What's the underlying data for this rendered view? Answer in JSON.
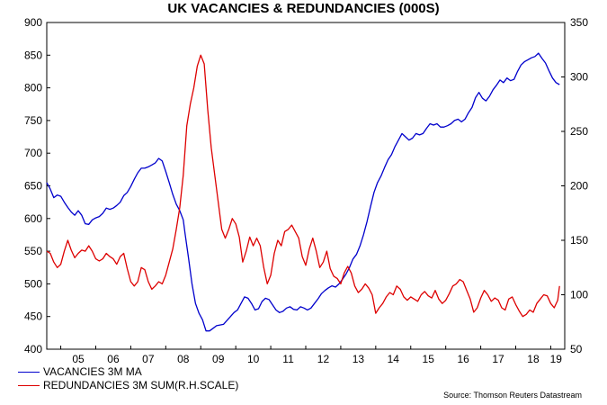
{
  "title": "UK VACANCIES & REDUNDANCIES (000S)",
  "source": "Source: Thomson Reuters Datastream",
  "colors": {
    "vacancies": "#0000cc",
    "redundancies": "#dd0000",
    "axis": "#000000"
  },
  "chart_data": {
    "type": "line",
    "title": "UK VACANCIES & REDUNDANCIES (000S)",
    "x_tick_labels": [
      "05",
      "06",
      "07",
      "08",
      "09",
      "10",
      "11",
      "12",
      "13",
      "14",
      "15",
      "16",
      "17",
      "18",
      "19"
    ],
    "x_range": [
      2004.6,
      2019.4
    ],
    "y_left": {
      "range": [
        400,
        900
      ],
      "ticks": [
        400,
        450,
        500,
        550,
        600,
        650,
        700,
        750,
        800,
        850,
        900
      ]
    },
    "y_right": {
      "range": [
        50,
        350
      ],
      "ticks": [
        50,
        100,
        150,
        200,
        250,
        300,
        350
      ]
    },
    "grid": false,
    "legend_position": "bottom-left",
    "series": [
      {
        "name": "VACANCIES 3M MA",
        "axis": "left",
        "color": "#0000cc",
        "points": [
          [
            2004.6,
            655
          ],
          [
            2004.7,
            645
          ],
          [
            2004.8,
            632
          ],
          [
            2004.9,
            636
          ],
          [
            2005.0,
            634
          ],
          [
            2005.1,
            625
          ],
          [
            2005.2,
            617
          ],
          [
            2005.3,
            610
          ],
          [
            2005.4,
            605
          ],
          [
            2005.5,
            612
          ],
          [
            2005.6,
            605
          ],
          [
            2005.7,
            592
          ],
          [
            2005.8,
            591
          ],
          [
            2005.9,
            598
          ],
          [
            2006.0,
            601
          ],
          [
            2006.1,
            603
          ],
          [
            2006.2,
            608
          ],
          [
            2006.3,
            616
          ],
          [
            2006.4,
            614
          ],
          [
            2006.5,
            616
          ],
          [
            2006.6,
            620
          ],
          [
            2006.7,
            625
          ],
          [
            2006.8,
            635
          ],
          [
            2006.9,
            640
          ],
          [
            2007.0,
            649
          ],
          [
            2007.1,
            660
          ],
          [
            2007.2,
            670
          ],
          [
            2007.3,
            677
          ],
          [
            2007.4,
            677
          ],
          [
            2007.5,
            679
          ],
          [
            2007.6,
            682
          ],
          [
            2007.7,
            685
          ],
          [
            2007.8,
            692
          ],
          [
            2007.9,
            688
          ],
          [
            2008.0,
            672
          ],
          [
            2008.1,
            655
          ],
          [
            2008.2,
            637
          ],
          [
            2008.3,
            622
          ],
          [
            2008.4,
            612
          ],
          [
            2008.5,
            598
          ],
          [
            2008.55,
            578
          ],
          [
            2008.65,
            540
          ],
          [
            2008.75,
            500
          ],
          [
            2008.85,
            470
          ],
          [
            2008.95,
            455
          ],
          [
            2009.05,
            445
          ],
          [
            2009.15,
            428
          ],
          [
            2009.25,
            428
          ],
          [
            2009.35,
            432
          ],
          [
            2009.45,
            436
          ],
          [
            2009.55,
            437
          ],
          [
            2009.65,
            438
          ],
          [
            2009.75,
            444
          ],
          [
            2009.85,
            450
          ],
          [
            2009.95,
            456
          ],
          [
            2010.05,
            460
          ],
          [
            2010.15,
            470
          ],
          [
            2010.25,
            480
          ],
          [
            2010.35,
            478
          ],
          [
            2010.45,
            470
          ],
          [
            2010.55,
            460
          ],
          [
            2010.65,
            462
          ],
          [
            2010.75,
            473
          ],
          [
            2010.85,
            478
          ],
          [
            2010.95,
            476
          ],
          [
            2011.05,
            468
          ],
          [
            2011.15,
            460
          ],
          [
            2011.25,
            456
          ],
          [
            2011.35,
            458
          ],
          [
            2011.45,
            463
          ],
          [
            2011.55,
            465
          ],
          [
            2011.65,
            461
          ],
          [
            2011.75,
            460
          ],
          [
            2011.85,
            465
          ],
          [
            2011.95,
            463
          ],
          [
            2012.05,
            460
          ],
          [
            2012.15,
            463
          ],
          [
            2012.25,
            470
          ],
          [
            2012.35,
            477
          ],
          [
            2012.45,
            485
          ],
          [
            2012.55,
            490
          ],
          [
            2012.65,
            494
          ],
          [
            2012.75,
            497
          ],
          [
            2012.85,
            495
          ],
          [
            2012.95,
            500
          ],
          [
            2013.05,
            507
          ],
          [
            2013.15,
            515
          ],
          [
            2013.25,
            525
          ],
          [
            2013.35,
            538
          ],
          [
            2013.45,
            545
          ],
          [
            2013.55,
            558
          ],
          [
            2013.65,
            575
          ],
          [
            2013.75,
            595
          ],
          [
            2013.85,
            618
          ],
          [
            2013.95,
            640
          ],
          [
            2014.05,
            655
          ],
          [
            2014.15,
            665
          ],
          [
            2014.25,
            678
          ],
          [
            2014.35,
            690
          ],
          [
            2014.45,
            698
          ],
          [
            2014.55,
            710
          ],
          [
            2014.65,
            720
          ],
          [
            2014.75,
            730
          ],
          [
            2014.85,
            725
          ],
          [
            2014.95,
            720
          ],
          [
            2015.05,
            723
          ],
          [
            2015.15,
            730
          ],
          [
            2015.25,
            728
          ],
          [
            2015.35,
            730
          ],
          [
            2015.45,
            738
          ],
          [
            2015.55,
            745
          ],
          [
            2015.65,
            743
          ],
          [
            2015.75,
            745
          ],
          [
            2015.85,
            740
          ],
          [
            2015.95,
            740
          ],
          [
            2016.05,
            742
          ],
          [
            2016.15,
            745
          ],
          [
            2016.25,
            750
          ],
          [
            2016.35,
            752
          ],
          [
            2016.45,
            748
          ],
          [
            2016.55,
            752
          ],
          [
            2016.65,
            762
          ],
          [
            2016.75,
            770
          ],
          [
            2016.85,
            785
          ],
          [
            2016.95,
            793
          ],
          [
            2017.05,
            784
          ],
          [
            2017.15,
            780
          ],
          [
            2017.25,
            787
          ],
          [
            2017.35,
            797
          ],
          [
            2017.45,
            804
          ],
          [
            2017.55,
            812
          ],
          [
            2017.65,
            808
          ],
          [
            2017.75,
            815
          ],
          [
            2017.85,
            811
          ],
          [
            2017.95,
            813
          ],
          [
            2018.05,
            825
          ],
          [
            2018.15,
            835
          ],
          [
            2018.25,
            840
          ],
          [
            2018.35,
            843
          ],
          [
            2018.45,
            846
          ],
          [
            2018.55,
            848
          ],
          [
            2018.65,
            853
          ],
          [
            2018.75,
            845
          ],
          [
            2018.85,
            838
          ],
          [
            2018.95,
            826
          ],
          [
            2019.05,
            815
          ],
          [
            2019.15,
            808
          ],
          [
            2019.25,
            805
          ]
        ]
      },
      {
        "name": "REDUNDANCIES 3M SUM(R.H.SCALE)",
        "axis": "right",
        "color": "#dd0000",
        "points": [
          [
            2004.6,
            140
          ],
          [
            2004.7,
            138
          ],
          [
            2004.8,
            130
          ],
          [
            2004.9,
            125
          ],
          [
            2005.0,
            128
          ],
          [
            2005.1,
            140
          ],
          [
            2005.2,
            150
          ],
          [
            2005.3,
            141
          ],
          [
            2005.4,
            134
          ],
          [
            2005.5,
            138
          ],
          [
            2005.6,
            141
          ],
          [
            2005.7,
            140
          ],
          [
            2005.8,
            145
          ],
          [
            2005.9,
            140
          ],
          [
            2006.0,
            133
          ],
          [
            2006.1,
            131
          ],
          [
            2006.2,
            133
          ],
          [
            2006.3,
            138
          ],
          [
            2006.4,
            135
          ],
          [
            2006.5,
            133
          ],
          [
            2006.6,
            128
          ],
          [
            2006.7,
            135
          ],
          [
            2006.8,
            138
          ],
          [
            2006.9,
            124
          ],
          [
            2007.0,
            112
          ],
          [
            2007.1,
            108
          ],
          [
            2007.2,
            112
          ],
          [
            2007.3,
            125
          ],
          [
            2007.4,
            123
          ],
          [
            2007.5,
            112
          ],
          [
            2007.6,
            105
          ],
          [
            2007.7,
            108
          ],
          [
            2007.8,
            112
          ],
          [
            2007.9,
            110
          ],
          [
            2008.0,
            118
          ],
          [
            2008.1,
            130
          ],
          [
            2008.2,
            142
          ],
          [
            2008.3,
            160
          ],
          [
            2008.4,
            180
          ],
          [
            2008.5,
            210
          ],
          [
            2008.6,
            255
          ],
          [
            2008.7,
            275
          ],
          [
            2008.8,
            290
          ],
          [
            2008.9,
            310
          ],
          [
            2009.0,
            320
          ],
          [
            2009.1,
            312
          ],
          [
            2009.2,
            270
          ],
          [
            2009.3,
            235
          ],
          [
            2009.4,
            210
          ],
          [
            2009.5,
            185
          ],
          [
            2009.6,
            160
          ],
          [
            2009.7,
            152
          ],
          [
            2009.8,
            160
          ],
          [
            2009.9,
            170
          ],
          [
            2010.0,
            165
          ],
          [
            2010.1,
            153
          ],
          [
            2010.2,
            130
          ],
          [
            2010.3,
            140
          ],
          [
            2010.4,
            153
          ],
          [
            2010.5,
            145
          ],
          [
            2010.6,
            152
          ],
          [
            2010.7,
            145
          ],
          [
            2010.8,
            125
          ],
          [
            2010.9,
            110
          ],
          [
            2011.0,
            118
          ],
          [
            2011.1,
            138
          ],
          [
            2011.2,
            150
          ],
          [
            2011.3,
            145
          ],
          [
            2011.4,
            158
          ],
          [
            2011.5,
            160
          ],
          [
            2011.6,
            164
          ],
          [
            2011.7,
            158
          ],
          [
            2011.8,
            152
          ],
          [
            2011.9,
            135
          ],
          [
            2012.0,
            127
          ],
          [
            2012.1,
            142
          ],
          [
            2012.2,
            152
          ],
          [
            2012.3,
            140
          ],
          [
            2012.4,
            125
          ],
          [
            2012.5,
            130
          ],
          [
            2012.6,
            140
          ],
          [
            2012.7,
            124
          ],
          [
            2012.8,
            117
          ],
          [
            2012.9,
            115
          ],
          [
            2013.0,
            110
          ],
          [
            2013.1,
            120
          ],
          [
            2013.2,
            126
          ],
          [
            2013.3,
            120
          ],
          [
            2013.4,
            108
          ],
          [
            2013.5,
            102
          ],
          [
            2013.6,
            105
          ],
          [
            2013.7,
            110
          ],
          [
            2013.8,
            106
          ],
          [
            2013.9,
            100
          ],
          [
            2014.0,
            83
          ],
          [
            2014.1,
            88
          ],
          [
            2014.2,
            92
          ],
          [
            2014.3,
            98
          ],
          [
            2014.4,
            102
          ],
          [
            2014.5,
            100
          ],
          [
            2014.6,
            108
          ],
          [
            2014.7,
            105
          ],
          [
            2014.8,
            98
          ],
          [
            2014.9,
            95
          ],
          [
            2015.0,
            98
          ],
          [
            2015.1,
            96
          ],
          [
            2015.2,
            94
          ],
          [
            2015.3,
            100
          ],
          [
            2015.4,
            103
          ],
          [
            2015.5,
            99
          ],
          [
            2015.6,
            97
          ],
          [
            2015.7,
            104
          ],
          [
            2015.8,
            96
          ],
          [
            2015.9,
            92
          ],
          [
            2016.0,
            95
          ],
          [
            2016.1,
            101
          ],
          [
            2016.2,
            108
          ],
          [
            2016.3,
            110
          ],
          [
            2016.4,
            114
          ],
          [
            2016.5,
            112
          ],
          [
            2016.6,
            104
          ],
          [
            2016.7,
            96
          ],
          [
            2016.8,
            84
          ],
          [
            2016.9,
            88
          ],
          [
            2017.0,
            97
          ],
          [
            2017.1,
            104
          ],
          [
            2017.2,
            100
          ],
          [
            2017.3,
            94
          ],
          [
            2017.4,
            97
          ],
          [
            2017.5,
            95
          ],
          [
            2017.6,
            88
          ],
          [
            2017.7,
            86
          ],
          [
            2017.8,
            96
          ],
          [
            2017.9,
            98
          ],
          [
            2018.0,
            91
          ],
          [
            2018.1,
            85
          ],
          [
            2018.2,
            80
          ],
          [
            2018.3,
            82
          ],
          [
            2018.4,
            86
          ],
          [
            2018.5,
            84
          ],
          [
            2018.6,
            92
          ],
          [
            2018.7,
            96
          ],
          [
            2018.8,
            100
          ],
          [
            2018.9,
            99
          ],
          [
            2019.0,
            92
          ],
          [
            2019.1,
            88
          ],
          [
            2019.2,
            95
          ],
          [
            2019.25,
            108
          ]
        ]
      }
    ]
  }
}
